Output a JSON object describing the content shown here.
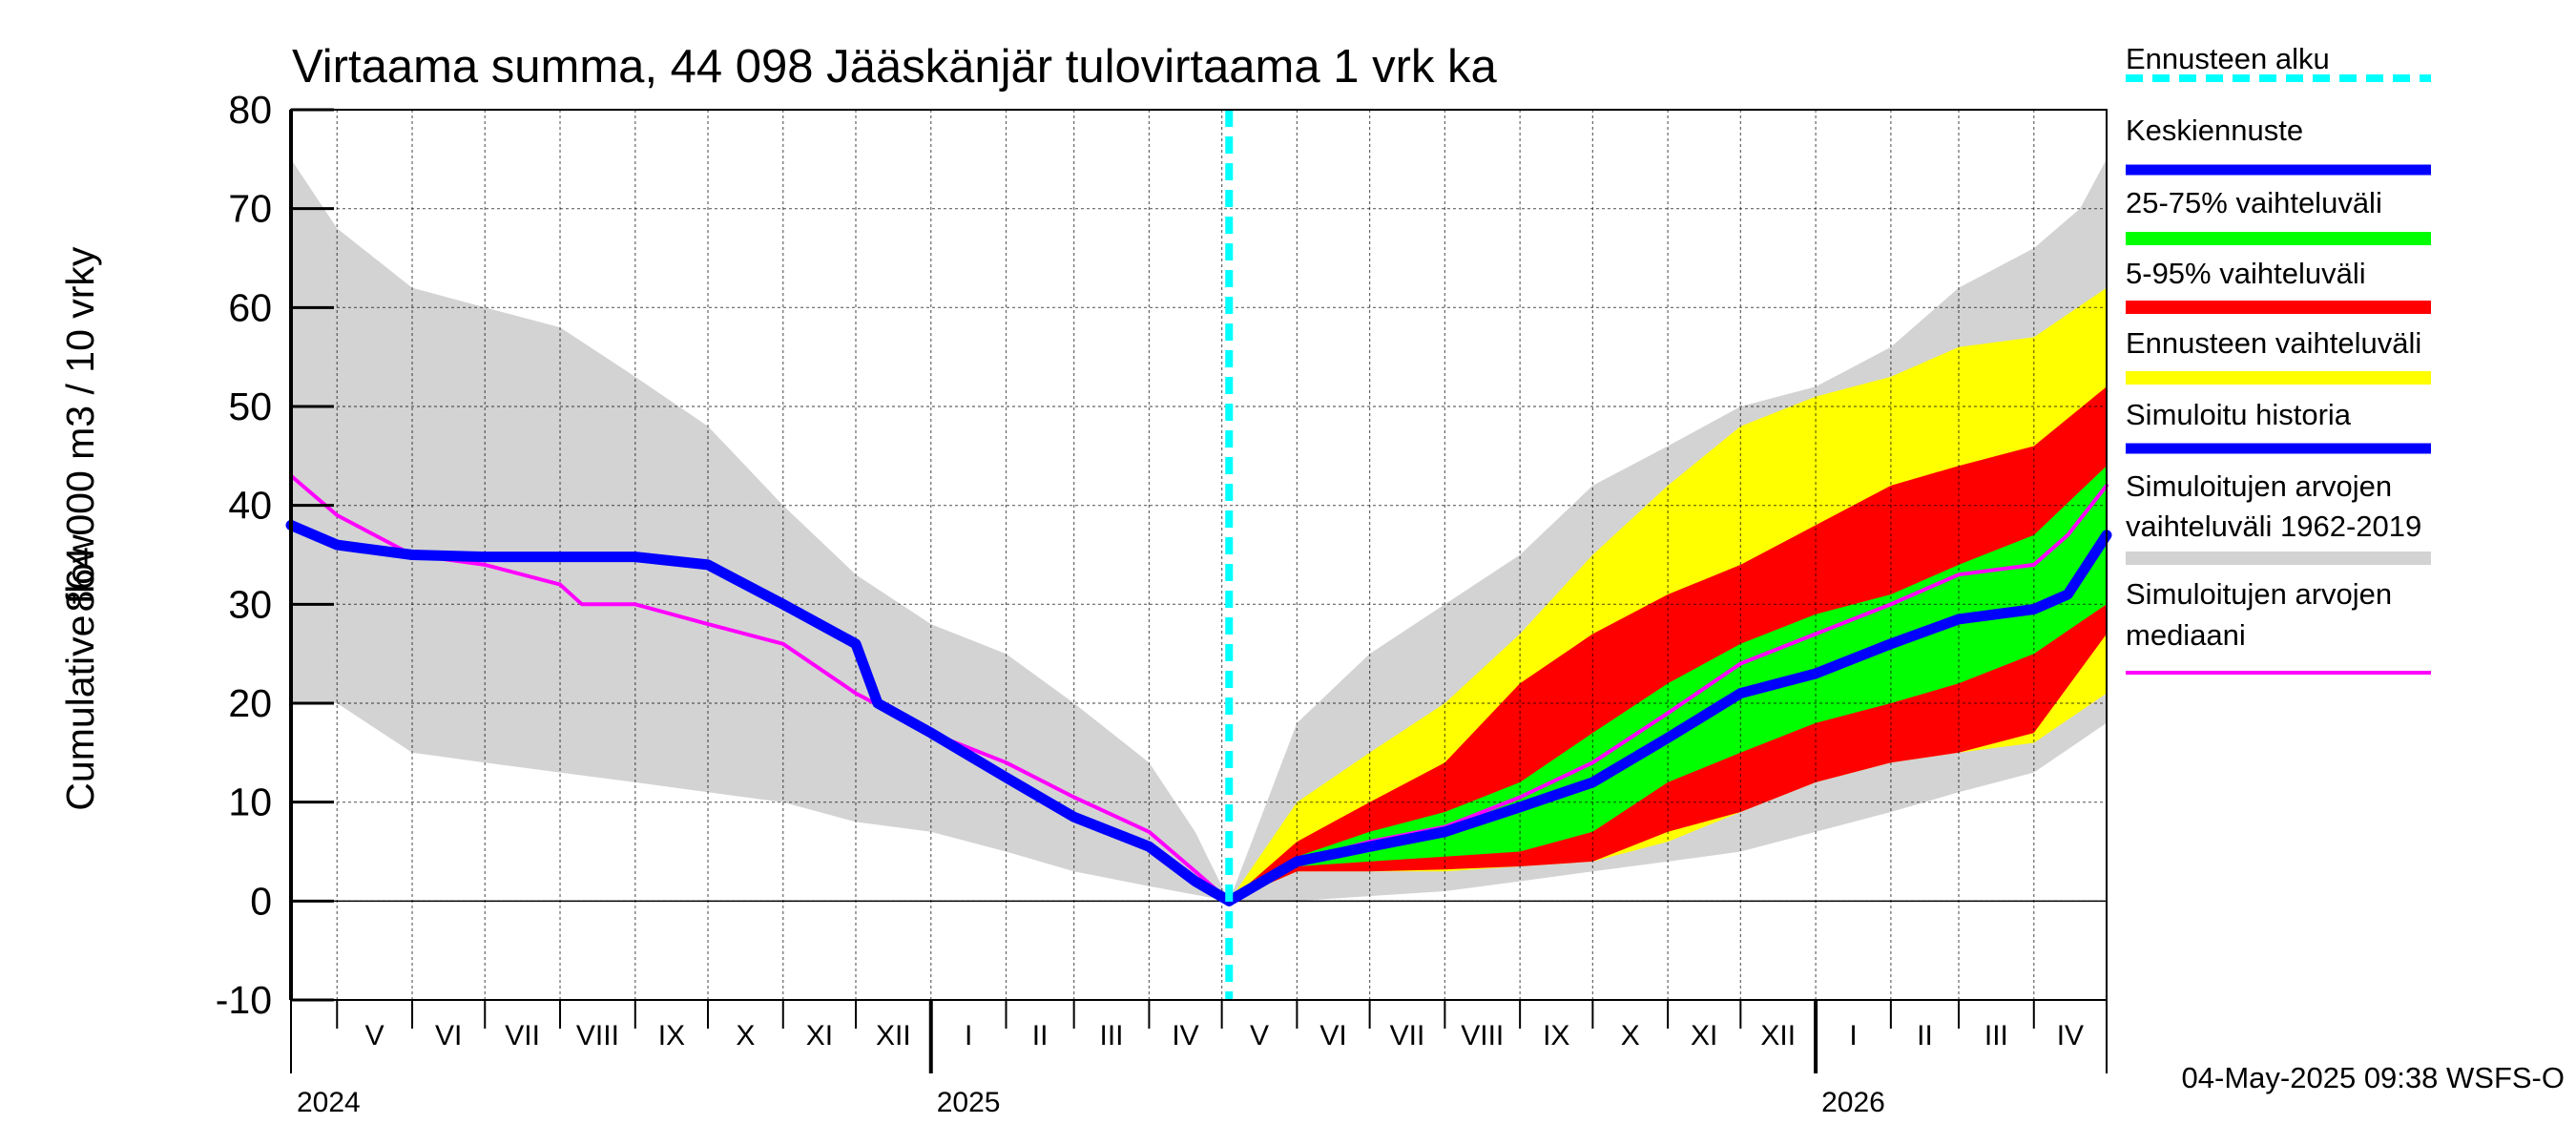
{
  "chart_data": {
    "type": "area",
    "title": "Virtaama summa, 44 098 Jääskänjär tulovirtaama 1 vrk ka",
    "ylabel_line1": "Cumulative flow",
    "ylabel_line2": "864 000 m3 / 10 vrky",
    "ylim": [
      -10,
      80
    ],
    "yticks": [
      -10,
      0,
      10,
      20,
      30,
      40,
      50,
      60,
      70,
      80
    ],
    "grid": true,
    "x_start": "2024-04-12",
    "x_end": "2026-05-01",
    "forecast_start": "2025-05-04",
    "months": [
      {
        "label": "V",
        "date": "2024-05-01"
      },
      {
        "label": "VI",
        "date": "2024-06-01"
      },
      {
        "label": "VII",
        "date": "2024-07-01"
      },
      {
        "label": "VIII",
        "date": "2024-08-01"
      },
      {
        "label": "IX",
        "date": "2024-09-01"
      },
      {
        "label": "X",
        "date": "2024-10-01"
      },
      {
        "label": "XI",
        "date": "2024-11-01"
      },
      {
        "label": "XII",
        "date": "2024-12-01"
      },
      {
        "label": "I",
        "date": "2025-01-01"
      },
      {
        "label": "II",
        "date": "2025-02-01"
      },
      {
        "label": "III",
        "date": "2025-03-01"
      },
      {
        "label": "IV",
        "date": "2025-04-01"
      },
      {
        "label": "V",
        "date": "2025-05-01"
      },
      {
        "label": "VI",
        "date": "2025-06-01"
      },
      {
        "label": "VII",
        "date": "2025-07-01"
      },
      {
        "label": "VIII",
        "date": "2025-08-01"
      },
      {
        "label": "IX",
        "date": "2025-09-01"
      },
      {
        "label": "X",
        "date": "2025-10-01"
      },
      {
        "label": "XI",
        "date": "2025-11-01"
      },
      {
        "label": "XII",
        "date": "2025-12-01"
      },
      {
        "label": "I",
        "date": "2026-01-01"
      },
      {
        "label": "II",
        "date": "2026-02-01"
      },
      {
        "label": "III",
        "date": "2026-03-01"
      },
      {
        "label": "IV",
        "date": "2026-04-01"
      }
    ],
    "years": [
      {
        "label": "2024",
        "date": "2024-04-12"
      },
      {
        "label": "2025",
        "date": "2025-01-01"
      },
      {
        "label": "2026",
        "date": "2026-01-01"
      }
    ],
    "series": [
      {
        "name": "Simuloitujen arvojen vaihteluväli 1962-2019",
        "kind": "band",
        "color": "#d3d3d3",
        "upper": [
          [
            "2024-04-12",
            75
          ],
          [
            "2024-05-01",
            68
          ],
          [
            "2024-06-01",
            62
          ],
          [
            "2024-07-01",
            60
          ],
          [
            "2024-08-01",
            58
          ],
          [
            "2024-09-01",
            53
          ],
          [
            "2024-10-01",
            48
          ],
          [
            "2024-11-01",
            40
          ],
          [
            "2024-12-01",
            33
          ],
          [
            "2025-01-01",
            28
          ],
          [
            "2025-02-01",
            25
          ],
          [
            "2025-03-01",
            20
          ],
          [
            "2025-04-01",
            14
          ],
          [
            "2025-04-20",
            7
          ],
          [
            "2025-05-04",
            0
          ],
          [
            "2025-06-01",
            18
          ],
          [
            "2025-07-01",
            25
          ],
          [
            "2025-08-01",
            30
          ],
          [
            "2025-09-01",
            35
          ],
          [
            "2025-10-01",
            42
          ],
          [
            "2025-11-01",
            46
          ],
          [
            "2025-12-01",
            50
          ],
          [
            "2026-01-01",
            52
          ],
          [
            "2026-02-01",
            56
          ],
          [
            "2026-03-01",
            62
          ],
          [
            "2026-04-01",
            66
          ],
          [
            "2026-04-20",
            70
          ],
          [
            "2026-05-01",
            75
          ]
        ],
        "lower": [
          [
            "2024-04-12",
            20
          ],
          [
            "2024-05-01",
            20
          ],
          [
            "2024-06-01",
            15
          ],
          [
            "2024-07-01",
            14
          ],
          [
            "2024-08-01",
            13
          ],
          [
            "2024-09-01",
            12
          ],
          [
            "2024-10-01",
            11
          ],
          [
            "2024-11-01",
            10
          ],
          [
            "2024-12-01",
            8
          ],
          [
            "2025-01-01",
            7
          ],
          [
            "2025-02-01",
            5
          ],
          [
            "2025-03-01",
            3
          ],
          [
            "2025-04-01",
            1.5
          ],
          [
            "2025-05-04",
            0
          ],
          [
            "2025-06-01",
            0
          ],
          [
            "2025-07-01",
            0.5
          ],
          [
            "2025-08-01",
            1
          ],
          [
            "2025-09-01",
            2
          ],
          [
            "2025-10-01",
            3
          ],
          [
            "2025-11-01",
            4
          ],
          [
            "2025-12-01",
            5
          ],
          [
            "2026-01-01",
            7
          ],
          [
            "2026-02-01",
            9
          ],
          [
            "2026-03-01",
            11
          ],
          [
            "2026-04-01",
            13
          ],
          [
            "2026-05-01",
            18
          ]
        ]
      },
      {
        "name": "Ennusteen vaihteluväli",
        "kind": "band",
        "color": "#ffff00",
        "upper": [
          [
            "2025-05-04",
            0
          ],
          [
            "2025-06-01",
            10
          ],
          [
            "2025-07-01",
            15
          ],
          [
            "2025-08-01",
            20
          ],
          [
            "2025-09-01",
            27
          ],
          [
            "2025-10-01",
            35
          ],
          [
            "2025-11-01",
            42
          ],
          [
            "2025-12-01",
            48
          ],
          [
            "2026-01-01",
            51
          ],
          [
            "2026-02-01",
            53
          ],
          [
            "2026-03-01",
            56
          ],
          [
            "2026-04-01",
            57
          ],
          [
            "2026-05-01",
            62
          ]
        ],
        "lower": [
          [
            "2025-05-04",
            0
          ],
          [
            "2025-06-01",
            3
          ],
          [
            "2025-07-01",
            3
          ],
          [
            "2025-08-01",
            3
          ],
          [
            "2025-09-01",
            3.5
          ],
          [
            "2025-10-01",
            4
          ],
          [
            "2025-11-01",
            6
          ],
          [
            "2025-12-01",
            9
          ],
          [
            "2026-01-01",
            12
          ],
          [
            "2026-02-01",
            14
          ],
          [
            "2026-03-01",
            15
          ],
          [
            "2026-04-01",
            16
          ],
          [
            "2026-05-01",
            21
          ]
        ]
      },
      {
        "name": "5-95% vaihteluväli",
        "kind": "band",
        "color": "#ff0000",
        "upper": [
          [
            "2025-05-04",
            0
          ],
          [
            "2025-06-01",
            6
          ],
          [
            "2025-07-01",
            10
          ],
          [
            "2025-08-01",
            14
          ],
          [
            "2025-09-01",
            22
          ],
          [
            "2025-10-01",
            27
          ],
          [
            "2025-11-01",
            31
          ],
          [
            "2025-12-01",
            34
          ],
          [
            "2026-01-01",
            38
          ],
          [
            "2026-02-01",
            42
          ],
          [
            "2026-03-01",
            44
          ],
          [
            "2026-04-01",
            46
          ],
          [
            "2026-05-01",
            52
          ]
        ],
        "lower": [
          [
            "2025-05-04",
            0
          ],
          [
            "2025-06-01",
            3
          ],
          [
            "2025-07-01",
            3
          ],
          [
            "2025-08-01",
            3.2
          ],
          [
            "2025-09-01",
            3.5
          ],
          [
            "2025-10-01",
            4
          ],
          [
            "2025-11-01",
            7
          ],
          [
            "2025-12-01",
            9
          ],
          [
            "2026-01-01",
            12
          ],
          [
            "2026-02-01",
            14
          ],
          [
            "2026-03-01",
            15
          ],
          [
            "2026-04-01",
            17
          ],
          [
            "2026-05-01",
            27
          ]
        ]
      },
      {
        "name": "25-75% vaihteluväli",
        "kind": "band",
        "color": "#00ff00",
        "upper": [
          [
            "2025-05-04",
            0
          ],
          [
            "2025-06-01",
            4.5
          ],
          [
            "2025-07-01",
            7
          ],
          [
            "2025-08-01",
            9
          ],
          [
            "2025-09-01",
            12
          ],
          [
            "2025-10-01",
            17
          ],
          [
            "2025-11-01",
            22
          ],
          [
            "2025-12-01",
            26
          ],
          [
            "2026-01-01",
            29
          ],
          [
            "2026-02-01",
            31
          ],
          [
            "2026-03-01",
            34
          ],
          [
            "2026-04-01",
            37
          ],
          [
            "2026-05-01",
            44
          ]
        ],
        "lower": [
          [
            "2025-05-04",
            0
          ],
          [
            "2025-06-01",
            3.5
          ],
          [
            "2025-07-01",
            4
          ],
          [
            "2025-08-01",
            4.5
          ],
          [
            "2025-09-01",
            5
          ],
          [
            "2025-10-01",
            7
          ],
          [
            "2025-11-01",
            12
          ],
          [
            "2025-12-01",
            15
          ],
          [
            "2026-01-01",
            18
          ],
          [
            "2026-02-01",
            20
          ],
          [
            "2026-03-01",
            22
          ],
          [
            "2026-04-01",
            25
          ],
          [
            "2026-05-01",
            30
          ]
        ]
      },
      {
        "name": "Simuloitujen arvojen mediaani",
        "kind": "line",
        "color": "#ff00ff",
        "width": 4,
        "points": [
          [
            "2024-04-12",
            43
          ],
          [
            "2024-05-01",
            39
          ],
          [
            "2024-06-01",
            35
          ],
          [
            "2024-07-01",
            34
          ],
          [
            "2024-08-01",
            32
          ],
          [
            "2024-08-10",
            30
          ],
          [
            "2024-09-01",
            30
          ],
          [
            "2024-10-01",
            28
          ],
          [
            "2024-11-01",
            26
          ],
          [
            "2024-12-01",
            21
          ],
          [
            "2025-01-01",
            17
          ],
          [
            "2025-02-01",
            14
          ],
          [
            "2025-03-01",
            10.5
          ],
          [
            "2025-04-01",
            7
          ],
          [
            "2025-04-20",
            3
          ],
          [
            "2025-05-04",
            0
          ],
          [
            "2025-06-01",
            4
          ],
          [
            "2025-07-01",
            6
          ],
          [
            "2025-08-01",
            7.5
          ],
          [
            "2025-09-01",
            10.5
          ],
          [
            "2025-10-01",
            14
          ],
          [
            "2025-11-01",
            19
          ],
          [
            "2025-12-01",
            24
          ],
          [
            "2026-01-01",
            27
          ],
          [
            "2026-02-01",
            30
          ],
          [
            "2026-03-01",
            33
          ],
          [
            "2026-04-01",
            34
          ],
          [
            "2026-04-15",
            37
          ],
          [
            "2026-05-01",
            42
          ]
        ]
      },
      {
        "name": "Simuloitu historia",
        "kind": "line",
        "color": "#0000ff",
        "width": 11,
        "points": [
          [
            "2024-04-12",
            38
          ],
          [
            "2024-05-01",
            36
          ],
          [
            "2024-06-01",
            35
          ],
          [
            "2024-07-01",
            34.8
          ],
          [
            "2024-08-01",
            34.8
          ],
          [
            "2024-09-01",
            34.8
          ],
          [
            "2024-10-01",
            34
          ],
          [
            "2024-11-01",
            30
          ],
          [
            "2024-12-01",
            26
          ],
          [
            "2024-12-10",
            20
          ],
          [
            "2025-01-01",
            17
          ],
          [
            "2025-02-01",
            12.5
          ],
          [
            "2025-03-01",
            8.5
          ],
          [
            "2025-04-01",
            5.5
          ],
          [
            "2025-04-20",
            2
          ],
          [
            "2025-05-04",
            0
          ]
        ]
      },
      {
        "name": "Keskiennuste",
        "kind": "line",
        "color": "#0000ff",
        "width": 11,
        "points": [
          [
            "2025-05-04",
            0
          ],
          [
            "2025-06-01",
            4
          ],
          [
            "2025-07-01",
            5.5
          ],
          [
            "2025-08-01",
            7
          ],
          [
            "2025-09-01",
            9.5
          ],
          [
            "2025-10-01",
            12
          ],
          [
            "2025-11-01",
            16.5
          ],
          [
            "2025-12-01",
            21
          ],
          [
            "2026-01-01",
            23
          ],
          [
            "2026-02-01",
            26
          ],
          [
            "2026-03-01",
            28.5
          ],
          [
            "2026-04-01",
            29.5
          ],
          [
            "2026-04-15",
            31
          ],
          [
            "2026-05-01",
            37
          ]
        ]
      },
      {
        "name": "Ennusteen alku",
        "kind": "vline",
        "color": "#00ffff",
        "width": 8,
        "dash": "18,10",
        "date": "2025-05-04"
      }
    ]
  },
  "legend": [
    {
      "label": "Ennusteen alku",
      "color": "#00ffff",
      "dashed": true
    },
    {
      "label": "Keskiennuste",
      "color": "#0000ff"
    },
    {
      "label": "25-75% vaihteluväli",
      "color": "#00ff00"
    },
    {
      "label": "5-95% vaihteluväli",
      "color": "#ff0000"
    },
    {
      "label": "Ennusteen vaihteluväli",
      "color": "#ffff00"
    },
    {
      "label": "Simuloitu historia",
      "color": "#0000ff"
    },
    {
      "label": "Simuloitujen arvojen",
      "label2": "vaihteluväli 1962-2019",
      "color": "#d3d3d3"
    },
    {
      "label": "Simuloitujen arvojen",
      "label2": "mediaani",
      "color": "#ff00ff"
    }
  ],
  "footer": "04-May-2025 09:38 WSFS-O"
}
